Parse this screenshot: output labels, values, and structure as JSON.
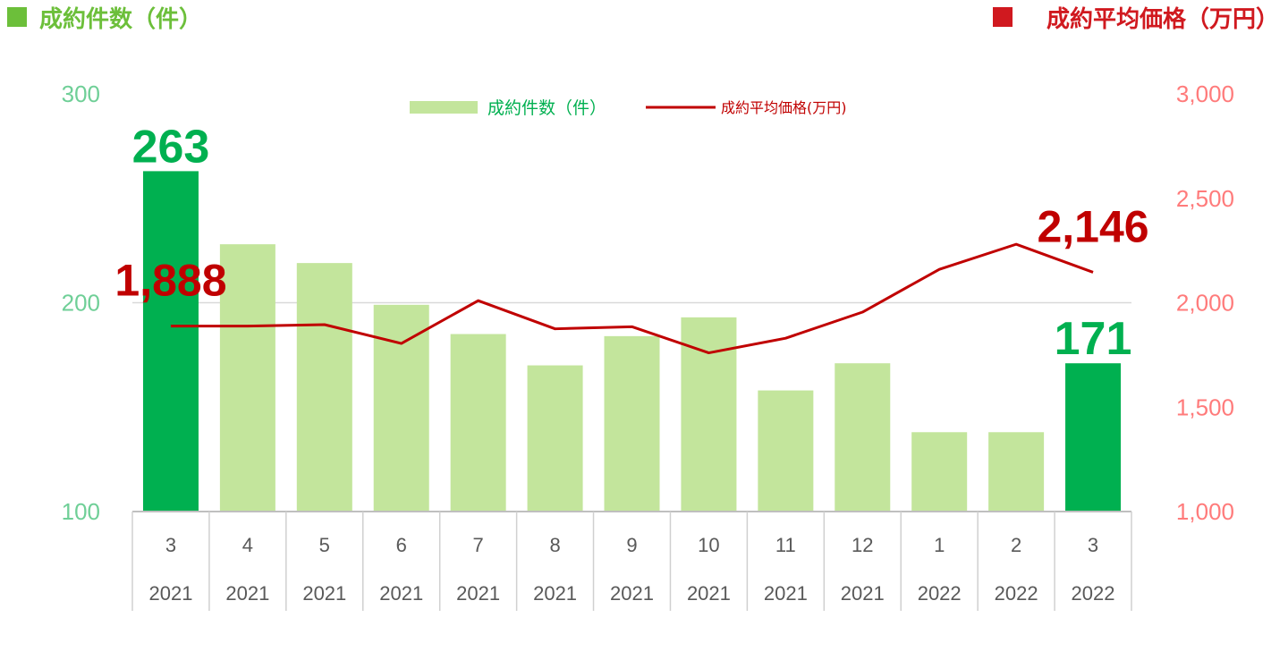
{
  "header": {
    "left_title": "成約件数（件）",
    "right_title": "成約平均価格（万円）",
    "left_color": "#6cbf3a",
    "right_color": "#d0191f"
  },
  "chart_data": {
    "type": "bar+line",
    "categories": [
      {
        "month": "3",
        "year": "2021"
      },
      {
        "month": "4",
        "year": "2021"
      },
      {
        "month": "5",
        "year": "2021"
      },
      {
        "month": "6",
        "year": "2021"
      },
      {
        "month": "7",
        "year": "2021"
      },
      {
        "month": "8",
        "year": "2021"
      },
      {
        "month": "9",
        "year": "2021"
      },
      {
        "month": "10",
        "year": "2021"
      },
      {
        "month": "11",
        "year": "2021"
      },
      {
        "month": "12",
        "year": "2021"
      },
      {
        "month": "1",
        "year": "2022"
      },
      {
        "month": "2",
        "year": "2022"
      },
      {
        "month": "3",
        "year": "2022"
      }
    ],
    "series": [
      {
        "name": "成約件数（件）",
        "kind": "bar",
        "axis": "left",
        "color": "#c3e59c",
        "highlight_color": "#00b050",
        "highlight_indices": [
          0,
          12
        ],
        "values": [
          263,
          228,
          219,
          199,
          185,
          170,
          184,
          193,
          158,
          171,
          138,
          138,
          171
        ]
      },
      {
        "name": "成約平均価格(万円)",
        "kind": "line",
        "axis": "right",
        "color": "#c00000",
        "values": [
          1888,
          1888,
          1895,
          1805,
          2010,
          1875,
          1885,
          1760,
          1830,
          1955,
          2160,
          2280,
          2146
        ]
      }
    ],
    "y_left": {
      "min": 100,
      "max": 300,
      "ticks": [
        "100",
        "200",
        "300"
      ],
      "tick_values": [
        100,
        200,
        300
      ]
    },
    "y_right": {
      "min": 1000,
      "max": 3000,
      "ticks": [
        "1,000",
        "1,500",
        "2,000",
        "2,500",
        "3,000"
      ],
      "tick_values": [
        1000,
        1500,
        2000,
        2500,
        3000
      ]
    },
    "gridline_at_left": 200,
    "legend": {
      "placement": "top-center"
    },
    "callouts": [
      {
        "series": 0,
        "index": 0,
        "label": "263",
        "color": "#00b050"
      },
      {
        "series": 0,
        "index": 12,
        "label": "171",
        "color": "#00b050"
      },
      {
        "series": 1,
        "index": 0,
        "label": "1,888",
        "color": "#c00000"
      },
      {
        "series": 1,
        "index": 12,
        "label": "2,146",
        "color": "#c00000"
      }
    ]
  }
}
